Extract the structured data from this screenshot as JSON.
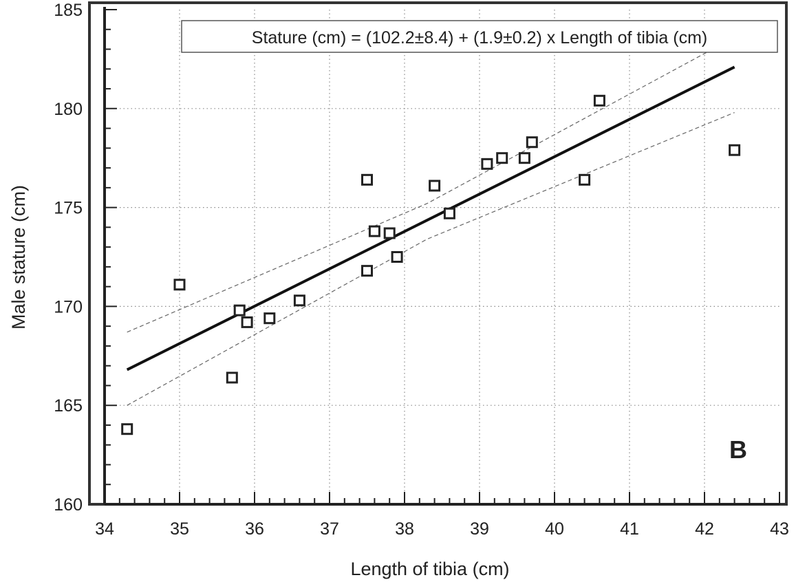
{
  "chart_data": {
    "type": "scatter",
    "xlabel": "Length of tibia (cm)",
    "ylabel": "Male stature (cm)",
    "xlim": [
      34,
      43
    ],
    "ylim": [
      160,
      185
    ],
    "xticks": [
      34,
      35,
      36,
      37,
      38,
      39,
      40,
      41,
      42,
      43
    ],
    "yticks": [
      160,
      165,
      170,
      175,
      180,
      185
    ],
    "grid": true,
    "annotation": "Stature (cm) = (102.2±8.4) + (1.9±0.2) x Length of tibia (cm)",
    "panel_label": "B",
    "points": [
      {
        "x": 34.3,
        "y": 163.8
      },
      {
        "x": 35.0,
        "y": 171.1
      },
      {
        "x": 35.7,
        "y": 166.4
      },
      {
        "x": 35.8,
        "y": 169.8
      },
      {
        "x": 35.9,
        "y": 169.2
      },
      {
        "x": 36.2,
        "y": 169.4
      },
      {
        "x": 36.6,
        "y": 170.3
      },
      {
        "x": 37.5,
        "y": 176.4
      },
      {
        "x": 37.5,
        "y": 171.8
      },
      {
        "x": 37.6,
        "y": 173.8
      },
      {
        "x": 37.8,
        "y": 173.7
      },
      {
        "x": 37.9,
        "y": 172.5
      },
      {
        "x": 38.4,
        "y": 176.1
      },
      {
        "x": 38.6,
        "y": 174.7
      },
      {
        "x": 39.1,
        "y": 177.2
      },
      {
        "x": 39.3,
        "y": 177.5
      },
      {
        "x": 39.6,
        "y": 177.5
      },
      {
        "x": 39.7,
        "y": 178.3
      },
      {
        "x": 40.4,
        "y": 176.4
      },
      {
        "x": 40.6,
        "y": 180.4
      },
      {
        "x": 42.4,
        "y": 177.9
      }
    ],
    "regression_line": {
      "x": [
        34.3,
        42.4
      ],
      "y": [
        166.8,
        182.1
      ]
    },
    "confidence_upper": {
      "x": [
        34.3,
        38.3,
        42.4
      ],
      "y": [
        168.7,
        175.2,
        183.6
      ]
    },
    "confidence_lower": {
      "x": [
        34.3,
        38.3,
        42.4
      ],
      "y": [
        165.0,
        173.4,
        179.8
      ]
    }
  }
}
